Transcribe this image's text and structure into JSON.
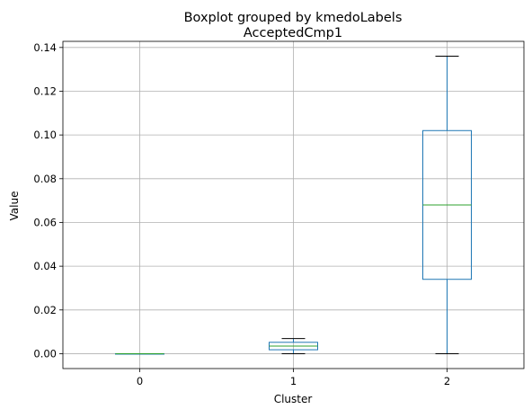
{
  "chart_data": {
    "type": "box",
    "suptitle": "Boxplot grouped by kmedoLabels",
    "title": "AcceptedCmp1",
    "xlabel": "Cluster",
    "ylabel": "Value",
    "categories": [
      "0",
      "1",
      "2"
    ],
    "ylim": [
      -0.0068,
      0.1428
    ],
    "yticks": [
      0.0,
      0.02,
      0.04,
      0.06,
      0.08,
      0.1,
      0.12,
      0.14
    ],
    "ytick_labels": [
      "0.00",
      "0.02",
      "0.04",
      "0.06",
      "0.08",
      "0.10",
      "0.12",
      "0.14"
    ],
    "grid": true,
    "boxes": [
      {
        "category": "0",
        "whisker_low": 0.0,
        "q1": 0.0,
        "median": 0.0,
        "q3": 0.0,
        "whisker_high": 0.0
      },
      {
        "category": "1",
        "whisker_low": 0.0,
        "q1": 0.0018,
        "median": 0.0035,
        "q3": 0.0052,
        "whisker_high": 0.0069
      },
      {
        "category": "2",
        "whisker_low": 0.0,
        "q1": 0.034,
        "median": 0.068,
        "q3": 0.102,
        "whisker_high": 0.136
      }
    ],
    "colors": {
      "box": "#1f77b4",
      "median": "#2ca02c",
      "whisker": "#1f77b4",
      "cap": "#000000",
      "grid": "#b0b0b0",
      "axes": "#000000"
    }
  }
}
